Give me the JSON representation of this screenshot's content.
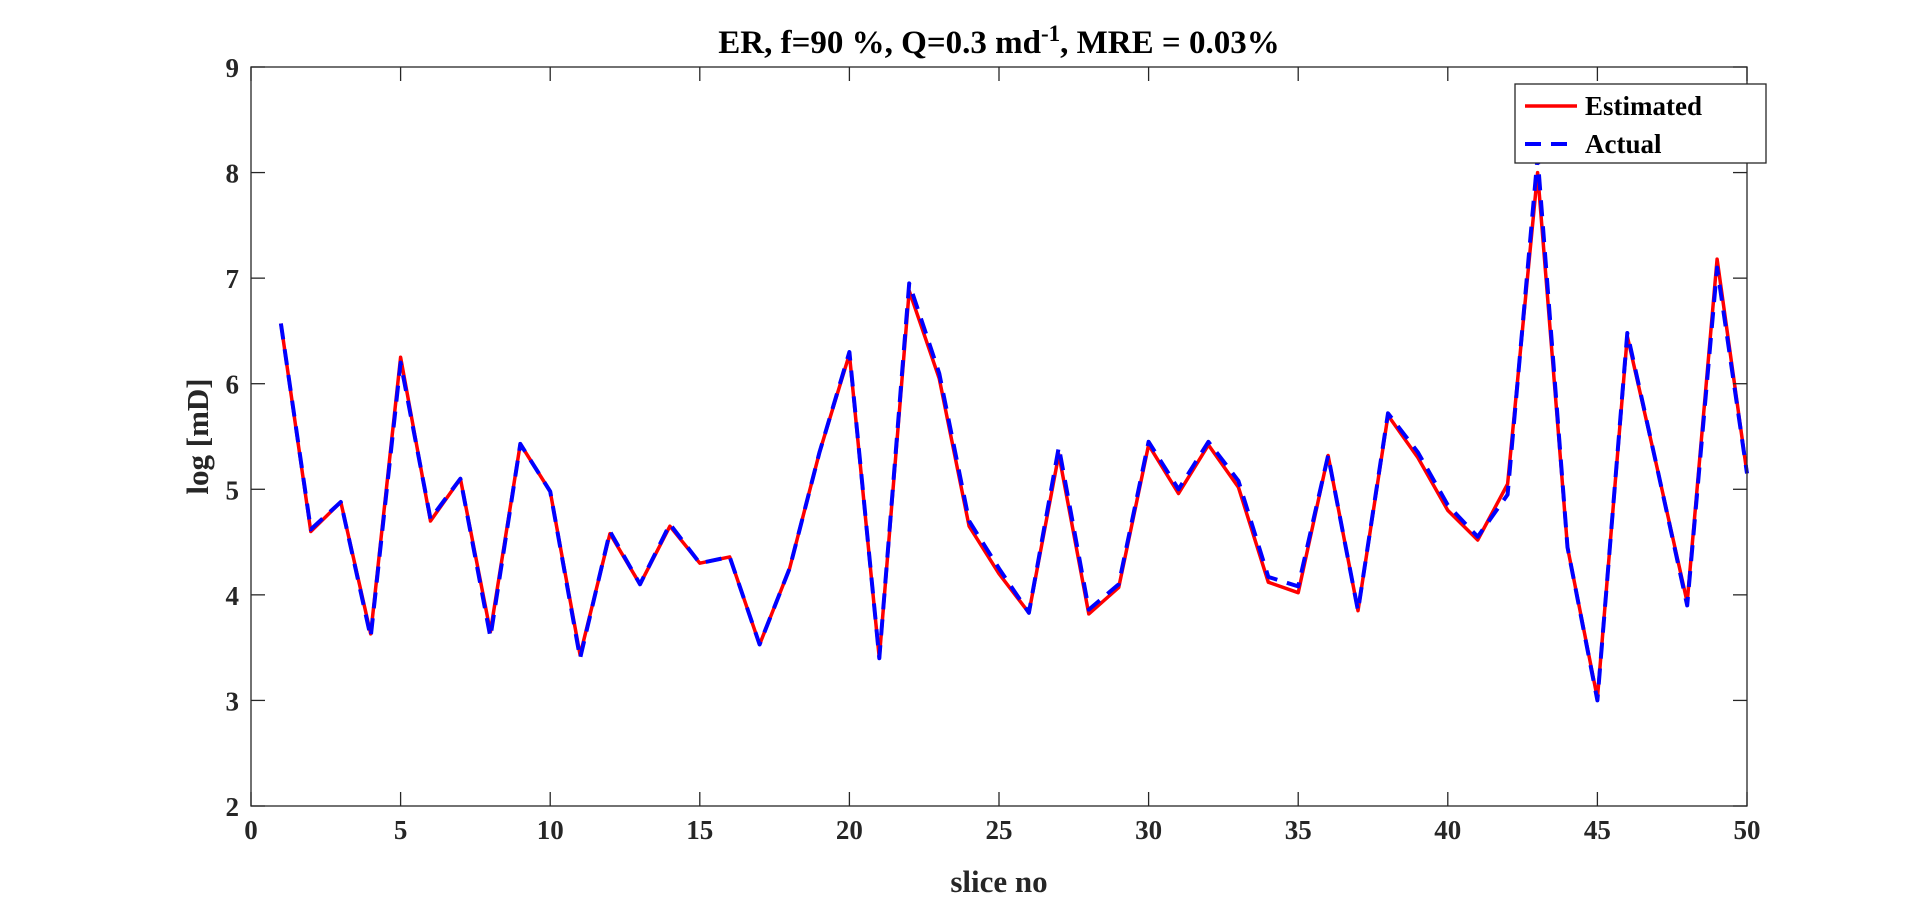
{
  "chart_data": {
    "type": "line",
    "title": {
      "main": "ER, f=90 %, Q=0.3 md",
      "superscript": "-1",
      "suffix": ", MRE = 0.03%"
    },
    "xlabel": "slice no",
    "ylabel": "log [mD]",
    "xlim": [
      0,
      50
    ],
    "ylim": [
      2,
      9
    ],
    "xticks": [
      0,
      5,
      10,
      15,
      20,
      25,
      30,
      35,
      40,
      45,
      50
    ],
    "yticks": [
      2,
      3,
      4,
      5,
      6,
      7,
      8,
      9
    ],
    "grid": false,
    "legend_position": "top-right",
    "x": [
      1,
      2,
      3,
      4,
      5,
      6,
      7,
      8,
      9,
      10,
      11,
      12,
      13,
      14,
      15,
      16,
      17,
      18,
      19,
      20,
      21,
      22,
      23,
      24,
      25,
      26,
      27,
      28,
      29,
      30,
      31,
      32,
      33,
      34,
      35,
      36,
      37,
      38,
      39,
      40,
      41,
      42,
      43,
      44,
      45,
      46,
      47,
      48,
      49,
      50
    ],
    "series": [
      {
        "name": "Estimated",
        "color": "#ff0000",
        "style": "solid",
        "values": [
          6.57,
          4.6,
          4.88,
          3.63,
          6.25,
          4.7,
          5.1,
          3.65,
          5.43,
          4.98,
          3.43,
          4.58,
          4.1,
          4.65,
          4.3,
          4.36,
          3.53,
          4.25,
          5.35,
          6.28,
          3.4,
          6.88,
          6.05,
          4.65,
          4.2,
          3.83,
          5.33,
          3.82,
          4.07,
          5.42,
          4.96,
          5.42,
          5.02,
          4.12,
          4.02,
          5.32,
          3.85,
          5.7,
          5.3,
          4.8,
          4.52,
          5.05,
          8.0,
          4.45,
          3.02,
          6.45,
          5.2,
          3.93,
          7.18,
          5.15
        ]
      },
      {
        "name": "Actual",
        "color": "#0000ff",
        "style": "dashed",
        "values": [
          6.57,
          4.62,
          4.88,
          3.6,
          6.2,
          4.72,
          5.1,
          3.6,
          5.43,
          4.98,
          3.4,
          4.6,
          4.1,
          4.67,
          4.3,
          4.36,
          3.53,
          4.25,
          5.35,
          6.3,
          3.4,
          6.95,
          6.1,
          4.7,
          4.25,
          3.83,
          5.4,
          3.86,
          4.1,
          5.45,
          5.0,
          5.45,
          5.08,
          4.17,
          4.08,
          5.32,
          3.85,
          5.72,
          5.35,
          4.85,
          4.55,
          4.95,
          8.15,
          4.45,
          3.0,
          6.48,
          5.2,
          3.9,
          7.1,
          5.15
        ]
      }
    ]
  }
}
